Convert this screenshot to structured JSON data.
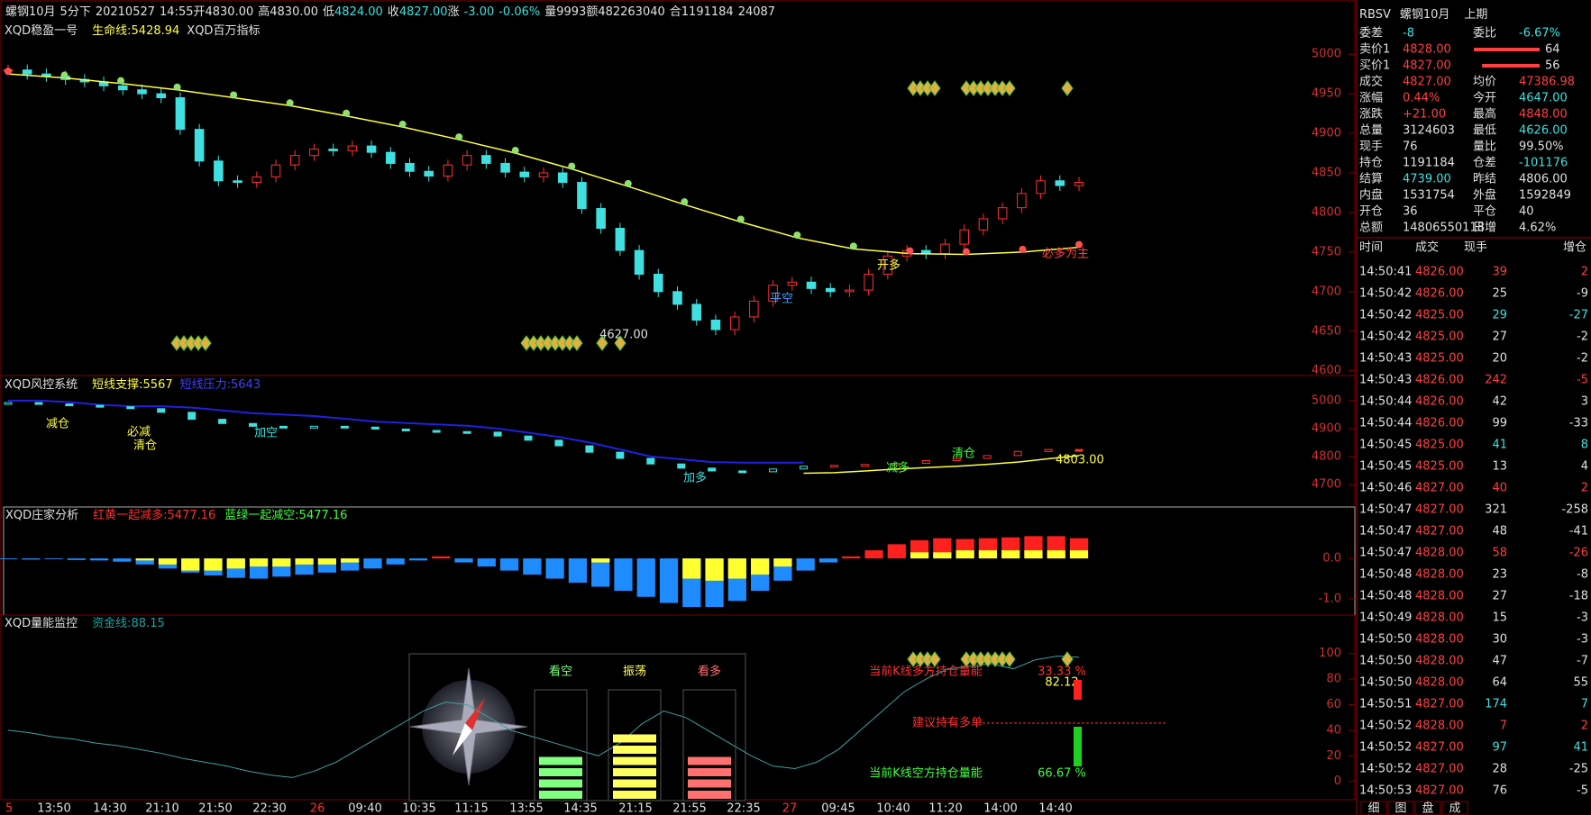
{
  "header": {
    "segments": [
      {
        "text": "螺钢10月",
        "color": "#e0e0e0"
      },
      {
        "text": "5分",
        "color": "#e0e0e0"
      },
      {
        "text": "下",
        "color": "#e0e0e0"
      },
      {
        "text": "20210527",
        "color": "#e0e0e0"
      },
      {
        "text": "14:55开4830.00",
        "color": "#e0e0e0"
      },
      {
        "text": "高4830.00",
        "color": "#e0e0e0"
      },
      {
        "text": "低",
        "color": "#e0e0e0"
      },
      {
        "text": "4824.00",
        "color": "#40e0e0"
      },
      {
        "text": "收",
        "color": "#e0e0e0"
      },
      {
        "text": "4827.00",
        "color": "#40e0e0"
      },
      {
        "text": "涨",
        "color": "#e0e0e0"
      },
      {
        "text": "-3.00",
        "color": "#40e0e0"
      },
      {
        "text": "-0.06%",
        "color": "#40e0e0"
      },
      {
        "text": "量9993",
        "color": "#e0e0e0"
      },
      {
        "text": "额482263040",
        "color": "#e0e0e0"
      },
      {
        "text": "合1191184",
        "color": "#e0e0e0"
      },
      {
        "text": "24087",
        "color": "#e0e0e0"
      }
    ]
  },
  "main": {
    "title": "XQD稳盈一号",
    "lifeline": "生命线:5428.94",
    "indicator": "XQD百万指标",
    "ylim": [
      4594,
      5040
    ],
    "yticks": [
      5000,
      4950,
      4900,
      4850,
      4800,
      4750,
      4700,
      4650,
      4600
    ],
    "closes": [
      4980,
      4975,
      4972,
      4968,
      4965,
      4960,
      4955,
      4950,
      4945,
      4905,
      4865,
      4840,
      4838,
      4845,
      4860,
      4872,
      4880,
      4878,
      4884,
      4876,
      4862,
      4852,
      4846,
      4860,
      4872,
      4862,
      4851,
      4845,
      4850,
      4838,
      4805,
      4780,
      4752,
      4722,
      4700,
      4684,
      4664,
      4652,
      4668,
      4688,
      4708,
      4712,
      4704,
      4700,
      4702,
      4722,
      4745,
      4752,
      4748,
      4760,
      4778,
      4792,
      4806,
      4824,
      4840,
      4834,
      4838
    ],
    "ma": [
      4975,
      4970,
      4963,
      4955,
      4945,
      4935,
      4922,
      4908,
      4892,
      4875,
      4855,
      4833,
      4810,
      4788,
      4768,
      4754,
      4748,
      4747,
      4750,
      4756
    ],
    "annotations": [
      {
        "text": "4627.00",
        "color": "#e0e0e0"
      },
      {
        "text": "平空",
        "color": "#40a0ff"
      },
      {
        "text": "开多",
        "color": "#ffff40"
      },
      {
        "text": "必多为主",
        "color": "#ff4040"
      }
    ]
  },
  "risk": {
    "title": "XQD风控系统",
    "support": "短线支撑:5567",
    "pressure": "短线压力:5643",
    "ylim": [
      4619,
      5090
    ],
    "yticks": [
      5000,
      4900,
      4800,
      4700
    ],
    "price": [
      4990,
      4985,
      4980,
      4975,
      4968,
      4955,
      4930,
      4915,
      4905,
      4900,
      4905,
      4902,
      4895,
      4890,
      4886,
      4884,
      4870,
      4855,
      4835,
      4812,
      4790,
      4770,
      4755,
      4745,
      4742,
      4752,
      4762,
      4765,
      4768,
      4772,
      4782,
      4790,
      4800,
      4815,
      4822,
      4818
    ],
    "resistance": [
      5000,
      5000,
      4995,
      4985,
      4980,
      4980,
      4975,
      4965,
      4955,
      4950,
      4945,
      4935,
      4925,
      4920,
      4915,
      4910,
      4900,
      4885,
      4870,
      4850,
      4825,
      4800,
      4790,
      4780,
      4778,
      4778,
      4778,
      null,
      null,
      null,
      null,
      null,
      null,
      null,
      null,
      null
    ],
    "support_line": [
      null,
      null,
      null,
      null,
      null,
      null,
      null,
      null,
      null,
      null,
      null,
      null,
      null,
      null,
      null,
      null,
      null,
      null,
      null,
      null,
      null,
      null,
      null,
      null,
      null,
      null,
      4740,
      4742,
      4748,
      4755,
      4760,
      4765,
      4772,
      4780,
      4792,
      4803
    ],
    "labels": [
      {
        "text": "减仓",
        "color": "#ffff40"
      },
      {
        "text": "必减",
        "color": "#ffff40"
      },
      {
        "text": "清仓",
        "color": "#ffff40"
      },
      {
        "text": "加空",
        "color": "#40e0e0"
      },
      {
        "text": "加多",
        "color": "#40e0e0"
      },
      {
        "text": "减多",
        "color": "#40ff40"
      },
      {
        "text": "清仓",
        "color": "#40ff40"
      }
    ],
    "last": "4803.00"
  },
  "dealer": {
    "title": "XQD庄家分析",
    "red_label": "红黄一起减多:5477.16",
    "blue_label": "蓝绿一起减空:5477.16",
    "ylim": [
      -1.4,
      1.27
    ],
    "yticks": [
      {
        "value": 0,
        "label": "0.0"
      },
      {
        "value": -1,
        "label": "-1.0"
      }
    ],
    "main": [
      -0.02,
      -0.03,
      -0.02,
      -0.04,
      -0.05,
      -0.08,
      -0.15,
      -0.25,
      -0.35,
      -0.42,
      -0.48,
      -0.5,
      -0.45,
      -0.4,
      -0.35,
      -0.3,
      -0.25,
      -0.15,
      -0.05,
      0.05,
      -0.1,
      -0.2,
      -0.3,
      -0.4,
      -0.5,
      -0.6,
      -0.7,
      -0.8,
      -0.95,
      -1.1,
      -1.2,
      -1.2,
      -1.05,
      -0.8,
      -0.55,
      -0.3,
      -0.1,
      0.05,
      0.2,
      0.35,
      0.45,
      0.5,
      0.48,
      0.5,
      0.52,
      0.55,
      0.55,
      0.5
    ],
    "overlay": [
      0,
      0,
      0,
      0,
      0,
      0,
      -0.05,
      -0.15,
      -0.3,
      -0.3,
      -0.25,
      -0.2,
      -0.2,
      -0.15,
      -0.15,
      -0.1,
      0,
      0,
      0,
      0,
      0,
      0,
      0,
      0,
      0,
      0,
      -0.1,
      0,
      0,
      0,
      -0.5,
      -0.55,
      -0.5,
      -0.4,
      -0.2,
      0,
      0,
      0,
      0,
      0,
      0.15,
      0.15,
      0.2,
      0.2,
      0.2,
      0.2,
      0.2,
      0.2
    ]
  },
  "volume": {
    "title": "XQD量能监控",
    "fund": "资金线:88.15",
    "ylim": [
      -15,
      130
    ],
    "yticks": [
      100,
      80,
      60,
      40,
      20,
      0
    ],
    "line": [
      40,
      38,
      35,
      33,
      30,
      28,
      25,
      22,
      18,
      15,
      12,
      8,
      5,
      3,
      8,
      15,
      25,
      35,
      45,
      55,
      62,
      60,
      50,
      40,
      35,
      30,
      25,
      20,
      30,
      45,
      55,
      50,
      40,
      30,
      20,
      12,
      10,
      15,
      25,
      40,
      55,
      70,
      80,
      88,
      90,
      92,
      88,
      95,
      98,
      97
    ],
    "gauges": [
      {
        "label": "看空",
        "level": 4,
        "color": "#80ff80"
      },
      {
        "label": "振荡",
        "level": 6,
        "color": "#ffff60"
      },
      {
        "label": "看多",
        "level": 4,
        "color": "#ff7070"
      }
    ],
    "long_text": "当前K线多方持仓量能",
    "long_pct": 33.33,
    "long_label": "33.33 %",
    "long_sub": "82.12",
    "advice": "建议持有多单",
    "short_text": "当前K线空方持仓量能",
    "short_pct": 66.67,
    "short_label": "66.67 %"
  },
  "time_axis": [
    "5",
    "13:50",
    "14:30",
    "21:10",
    "21:50",
    "22:30",
    "26",
    "09:40",
    "10:35",
    "11:15",
    "13:55",
    "14:35",
    "21:15",
    "21:55",
    "22:35",
    "27",
    "09:45",
    "10:40",
    "11:20",
    "14:00",
    "14:40"
  ],
  "quote": {
    "header": [
      "RBSV",
      "螺钢10月",
      "上期"
    ],
    "book": [
      {
        "label": "卖价1",
        "price": "4828.00",
        "volume": 64
      },
      {
        "label": "买价1",
        "price": "4827.00",
        "volume": 56
      }
    ],
    "stats": [
      {
        "l1": "委差",
        "v1": "-8",
        "c1": "#40e0e0",
        "l2": "委比",
        "v2": "-6.67%",
        "c2": "#40e0e0"
      },
      {
        "l1": "成交",
        "v1": "4827.00",
        "c1": "#ff4040",
        "l2": "均价",
        "v2": "47386.98",
        "c2": "#ff4040"
      },
      {
        "l1": "涨幅",
        "v1": "0.44%",
        "c1": "#ff4040",
        "l2": "今开",
        "v2": "4647.00",
        "c2": "#40e0e0"
      },
      {
        "l1": "涨跌",
        "v1": "+21.00",
        "c1": "#ff4040",
        "l2": "最高",
        "v2": "4848.00",
        "c2": "#ff4040"
      },
      {
        "l1": "总量",
        "v1": "3124603",
        "c1": "#e0e0e0",
        "l2": "最低",
        "v2": "4626.00",
        "c2": "#40e0e0"
      },
      {
        "l1": "现手",
        "v1": "76",
        "c1": "#e0e0e0",
        "l2": "量比",
        "v2": "99.50%",
        "c2": "#e0e0e0"
      },
      {
        "l1": "持仓",
        "v1": "1191184",
        "c1": "#e0e0e0",
        "l2": "仓差",
        "v2": "-101176",
        "c2": "#40e0e0"
      },
      {
        "l1": "结算",
        "v1": "4739.00",
        "c1": "#40e0e0",
        "l2": "昨结",
        "v2": "4806.00",
        "c2": "#e0e0e0"
      },
      {
        "l1": "内盘",
        "v1": "1531754",
        "c1": "#e0e0e0",
        "l2": "外盘",
        "v2": "1592849",
        "c2": "#e0e0e0"
      },
      {
        "l1": "开仓",
        "v1": "36",
        "c1": "#e0e0e0",
        "l2": "平仓",
        "v2": "40",
        "c2": "#e0e0e0"
      },
      {
        "l1": "总额",
        "v1": "14806550118",
        "c1": "#e0e0e0",
        "l2": "日增",
        "v2": "4.62%",
        "c2": "#e0e0e0"
      }
    ]
  },
  "trades": {
    "header": [
      "时间",
      "成交",
      "现手",
      "增仓"
    ],
    "rows": [
      {
        "time": "14:50:41",
        "price": "4826.00",
        "volume": 39,
        "change": 2,
        "color": "#ff4040"
      },
      {
        "time": "14:50:42",
        "price": "4826.00",
        "volume": 25,
        "change": -9,
        "color": "#e0e0e0"
      },
      {
        "time": "14:50:42",
        "price": "4825.00",
        "volume": 29,
        "change": -27,
        "color": "#40e0e0"
      },
      {
        "time": "14:50:42",
        "price": "4825.00",
        "volume": 27,
        "change": -2,
        "color": "#e0e0e0"
      },
      {
        "time": "14:50:43",
        "price": "4825.00",
        "volume": 20,
        "change": -2,
        "color": "#e0e0e0"
      },
      {
        "time": "14:50:43",
        "price": "4826.00",
        "volume": 242,
        "change": -5,
        "color": "#ff4040"
      },
      {
        "time": "14:50:44",
        "price": "4826.00",
        "volume": 42,
        "change": 3,
        "color": "#e0e0e0"
      },
      {
        "time": "14:50:44",
        "price": "4826.00",
        "volume": 99,
        "change": -33,
        "color": "#e0e0e0"
      },
      {
        "time": "14:50:45",
        "price": "4825.00",
        "volume": 41,
        "change": 8,
        "color": "#40e0e0"
      },
      {
        "time": "14:50:45",
        "price": "4825.00",
        "volume": 13,
        "change": 4,
        "color": "#e0e0e0"
      },
      {
        "time": "14:50:46",
        "price": "4827.00",
        "volume": 40,
        "change": 2,
        "color": "#ff4040"
      },
      {
        "time": "14:50:47",
        "price": "4827.00",
        "volume": 321,
        "change": -258,
        "color": "#e0e0e0"
      },
      {
        "time": "14:50:47",
        "price": "4827.00",
        "volume": 48,
        "change": -41,
        "color": "#e0e0e0"
      },
      {
        "time": "14:50:47",
        "price": "4828.00",
        "volume": 58,
        "change": -26,
        "color": "#ff4040"
      },
      {
        "time": "14:50:48",
        "price": "4828.00",
        "volume": 23,
        "change": -8,
        "color": "#e0e0e0"
      },
      {
        "time": "14:50:48",
        "price": "4828.00",
        "volume": 27,
        "change": -18,
        "color": "#e0e0e0"
      },
      {
        "time": "14:50:49",
        "price": "4828.00",
        "volume": 15,
        "change": -3,
        "color": "#e0e0e0"
      },
      {
        "time": "14:50:50",
        "price": "4828.00",
        "volume": 30,
        "change": -3,
        "color": "#e0e0e0"
      },
      {
        "time": "14:50:50",
        "price": "4828.00",
        "volume": 47,
        "change": -7,
        "color": "#e0e0e0"
      },
      {
        "time": "14:50:50",
        "price": "4828.00",
        "volume": 64,
        "change": 55,
        "color": "#e0e0e0"
      },
      {
        "time": "14:50:51",
        "price": "4827.00",
        "volume": 174,
        "change": 7,
        "color": "#40e0e0"
      },
      {
        "time": "14:50:52",
        "price": "4828.00",
        "volume": 7,
        "change": 2,
        "color": "#ff4040"
      },
      {
        "time": "14:50:52",
        "price": "4827.00",
        "volume": 97,
        "change": 41,
        "color": "#40e0e0"
      },
      {
        "time": "14:50:52",
        "price": "4827.00",
        "volume": 28,
        "change": -25,
        "color": "#e0e0e0"
      },
      {
        "time": "14:50:53",
        "price": "4827.00",
        "volume": 76,
        "change": -5,
        "color": "#e0e0e0"
      }
    ]
  },
  "tabs": [
    "细",
    "图",
    "盘",
    "成"
  ]
}
